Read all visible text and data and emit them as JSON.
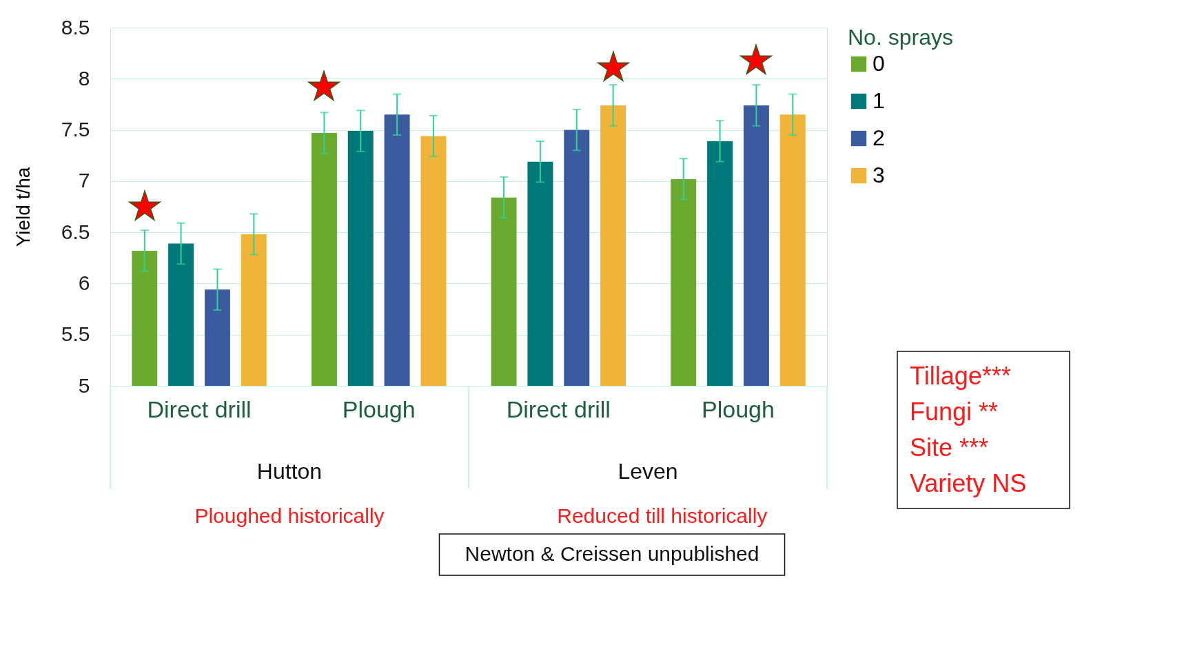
{
  "chart_data": {
    "type": "bar",
    "ylabel": "Yield t/ha",
    "legend_title": "No. sprays",
    "categories": [
      "Direct drill",
      "Plough",
      "Direct drill",
      "Plough"
    ],
    "series": [
      {
        "name": "0",
        "color": "#6aaa2e",
        "values": [
          6.32,
          7.47,
          6.84,
          7.02
        ],
        "errors": [
          0.2,
          0.2,
          0.2,
          0.2
        ]
      },
      {
        "name": "1",
        "color": "#00787a",
        "values": [
          6.39,
          7.49,
          7.19,
          7.39
        ],
        "errors": [
          0.2,
          0.2,
          0.2,
          0.2
        ]
      },
      {
        "name": "2",
        "color": "#3a5c9e",
        "values": [
          5.94,
          7.65,
          7.5,
          7.74
        ],
        "errors": [
          0.2,
          0.2,
          0.2,
          0.2
        ]
      },
      {
        "name": "3",
        "color": "#f0b43a",
        "values": [
          6.48,
          7.44,
          7.74,
          7.65
        ],
        "errors": [
          0.2,
          0.2,
          0.2,
          0.2
        ]
      }
    ],
    "ylim": [
      5,
      8.5
    ],
    "yticks": [
      5,
      5.5,
      6,
      6.5,
      7,
      7.5,
      8,
      8.5
    ],
    "grid": "y",
    "legend": "right",
    "annotations": [
      "Hutton",
      "Leven",
      "Ploughed historically",
      "Reduced till historically",
      "Newton & Creissen unpublished",
      "Tillage***\nFungi  **\nSite ***\nVariety   NS",
      "★",
      "★",
      "★",
      "★"
    ]
  }
}
